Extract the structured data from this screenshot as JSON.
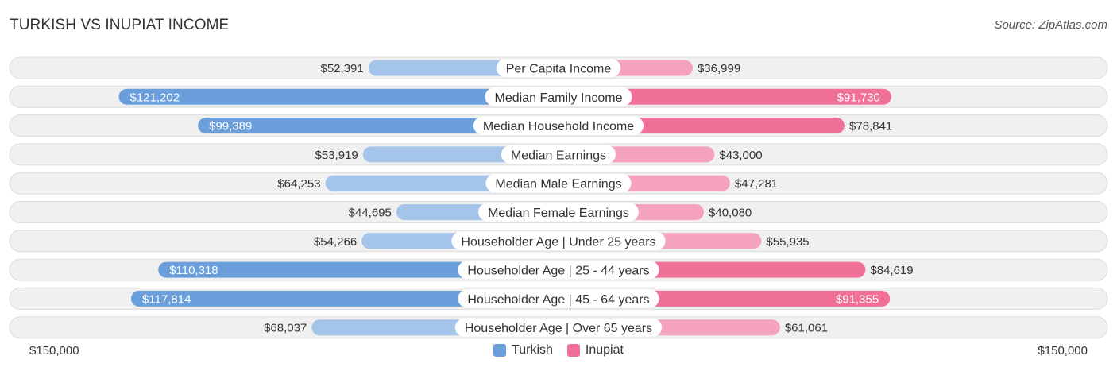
{
  "title": "TURKISH VS INUPIAT INCOME",
  "source": "Source: ZipAtlas.com",
  "colors": {
    "left_strong": "#6a9fdc",
    "left_light": "#a4c4ea",
    "right_strong": "#f07098",
    "right_light": "#f5a3bd",
    "row_bg": "#f0f0f0",
    "row_border": "#dcdcdc"
  },
  "axis": {
    "left_label": "$150,000",
    "right_label": "$150,000"
  },
  "legend": {
    "left": "Turkish",
    "right": "Inupiat"
  },
  "chart_data": {
    "type": "bar",
    "orientation": "diverging-horizontal",
    "xlim": [
      -150000,
      150000
    ],
    "categories": [
      "Per Capita Income",
      "Median Family Income",
      "Median Household Income",
      "Median Earnings",
      "Median Male Earnings",
      "Median Female Earnings",
      "Householder Age | Under 25 years",
      "Householder Age | 25 - 44 years",
      "Householder Age | 45 - 64 years",
      "Householder Age | Over 65 years"
    ],
    "series": [
      {
        "name": "Turkish",
        "values": [
          52391,
          121202,
          99389,
          53919,
          64253,
          44695,
          54266,
          110318,
          117814,
          68037
        ],
        "labels": [
          "$52,391",
          "$121,202",
          "$99,389",
          "$53,919",
          "$64,253",
          "$44,695",
          "$54,266",
          "$110,318",
          "$117,814",
          "$68,037"
        ]
      },
      {
        "name": "Inupiat",
        "values": [
          36999,
          91730,
          78841,
          43000,
          47281,
          40080,
          55935,
          84619,
          91355,
          61061
        ],
        "labels": [
          "$36,999",
          "$91,730",
          "$78,841",
          "$43,000",
          "$47,281",
          "$40,080",
          "$55,935",
          "$84,619",
          "$91,355",
          "$61,061"
        ]
      }
    ]
  }
}
